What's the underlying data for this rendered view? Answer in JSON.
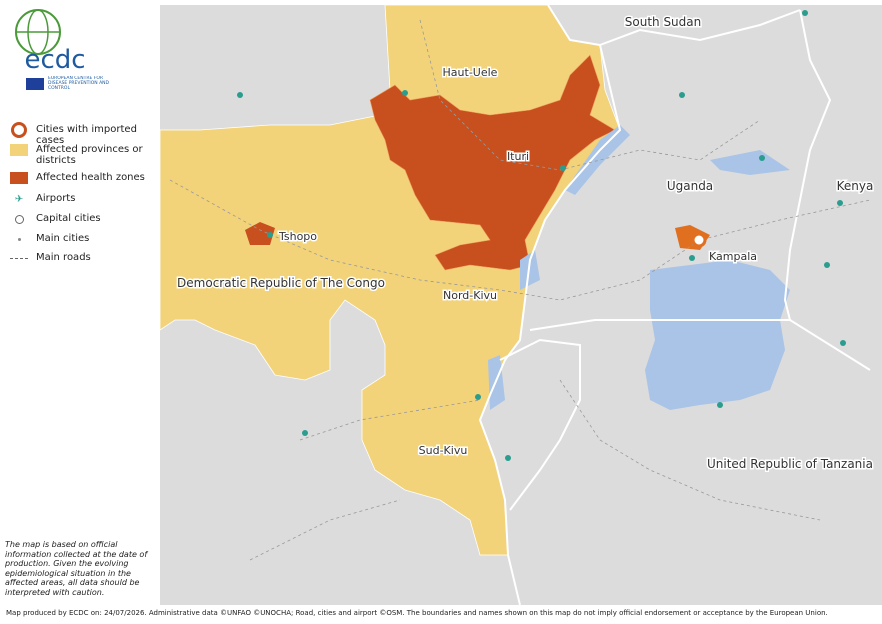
{
  "logo": {
    "name": "ecdc",
    "subtitle": "EUROPEAN CENTRE FOR DISEASE PREVENTION AND CONTROL"
  },
  "legend": [
    {
      "label": "Cities with imported cases"
    },
    {
      "label": "Affected provinces or districts"
    },
    {
      "label": "Affected health zones"
    },
    {
      "label": "Airports"
    },
    {
      "label": "Capital cities"
    },
    {
      "label": "Main cities"
    },
    {
      "label": "Main roads"
    }
  ],
  "map_labels": [
    "South Sudan",
    "Haut-Uele",
    "Ituri",
    "Tshopo",
    "Uganda",
    "Kenya",
    "Kampala",
    "Democratic Republic of The Congo",
    "Nord-Kivu",
    "Sud-Kivu",
    "United Republic of Tanzania"
  ],
  "note": "The map is based on official information collected at the date of production. Given the evolving epidemiological situation in the affected areas, all data should be interpreted with caution.",
  "footer": "Map produced by ECDC on: 24/07/2026. Administrative data ©UNFAO  ©UNOCHA;  Road, cities and airport ©OSM. The boundaries and names shown on this map do not imply official endorsement or acceptance by the European Union."
}
